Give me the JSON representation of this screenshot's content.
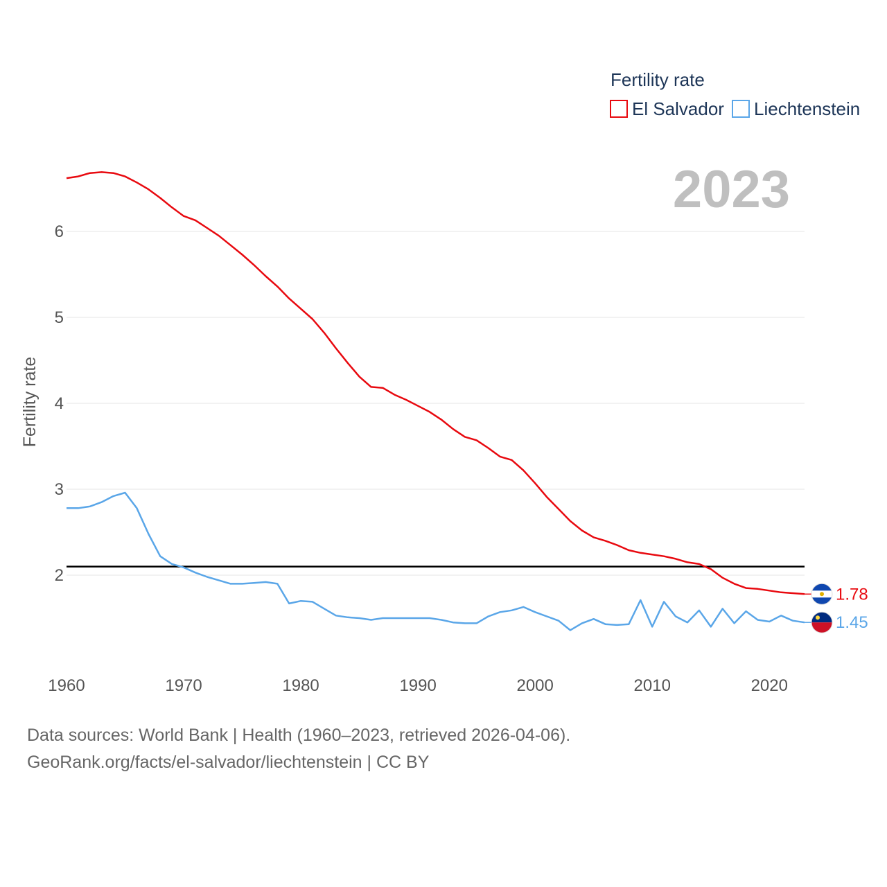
{
  "colors": {
    "el_salvador": "#e8090f",
    "liechtenstein": "#5aa6e8",
    "reference": "#000000",
    "grid": "#e6e6e6"
  },
  "chart_data": {
    "type": "line",
    "title": "Fertility rate",
    "year_label": "2023",
    "xlabel": "",
    "ylabel": "Fertility rate",
    "xlim": [
      1960,
      2023
    ],
    "ylim": [
      1.0,
      7.0
    ],
    "x_ticks": [
      "1960",
      "1970",
      "1980",
      "1990",
      "2000",
      "2010",
      "2020"
    ],
    "y_ticks": [
      "2",
      "3",
      "4",
      "5",
      "6"
    ],
    "reference_line": 2.1,
    "x": [
      1960,
      1961,
      1962,
      1963,
      1964,
      1965,
      1966,
      1967,
      1968,
      1969,
      1970,
      1971,
      1972,
      1973,
      1974,
      1975,
      1976,
      1977,
      1978,
      1979,
      1980,
      1981,
      1982,
      1983,
      1984,
      1985,
      1986,
      1987,
      1988,
      1989,
      1990,
      1991,
      1992,
      1993,
      1994,
      1995,
      1996,
      1997,
      1998,
      1999,
      2000,
      2001,
      2002,
      2003,
      2004,
      2005,
      2006,
      2007,
      2008,
      2009,
      2010,
      2011,
      2012,
      2013,
      2014,
      2015,
      2016,
      2017,
      2018,
      2019,
      2020,
      2021,
      2022,
      2023
    ],
    "series": [
      {
        "name": "El Salvador",
        "end_label": "1.78",
        "flag": "el-salvador-flag-icon",
        "values": [
          6.62,
          6.64,
          6.68,
          6.69,
          6.68,
          6.64,
          6.57,
          6.49,
          6.39,
          6.28,
          6.18,
          6.13,
          6.04,
          5.95,
          5.84,
          5.73,
          5.61,
          5.48,
          5.36,
          5.22,
          5.1,
          4.98,
          4.82,
          4.64,
          4.47,
          4.31,
          4.19,
          4.18,
          4.1,
          4.04,
          3.97,
          3.9,
          3.81,
          3.7,
          3.61,
          3.57,
          3.48,
          3.38,
          3.34,
          3.22,
          3.07,
          2.91,
          2.77,
          2.63,
          2.52,
          2.44,
          2.4,
          2.35,
          2.29,
          2.26,
          2.24,
          2.22,
          2.19,
          2.15,
          2.13,
          2.07,
          1.97,
          1.9,
          1.85,
          1.84,
          1.82,
          1.8,
          1.79,
          1.78
        ]
      },
      {
        "name": "Liechtenstein",
        "end_label": "1.45",
        "flag": "liechtenstein-flag-icon",
        "values": [
          2.78,
          2.78,
          2.8,
          2.85,
          2.92,
          2.96,
          2.78,
          2.48,
          2.22,
          2.13,
          2.09,
          2.03,
          1.98,
          1.94,
          1.9,
          1.9,
          1.91,
          1.92,
          1.9,
          1.67,
          1.7,
          1.69,
          1.61,
          1.53,
          1.51,
          1.5,
          1.48,
          1.5,
          1.5,
          1.5,
          1.5,
          1.5,
          1.48,
          1.45,
          1.44,
          1.44,
          1.52,
          1.57,
          1.59,
          1.63,
          1.57,
          1.52,
          1.47,
          1.36,
          1.44,
          1.49,
          1.43,
          1.42,
          1.43,
          1.71,
          1.4,
          1.69,
          1.52,
          1.45,
          1.59,
          1.4,
          1.61,
          1.44,
          1.58,
          1.48,
          1.46,
          1.53,
          1.47,
          1.45
        ]
      }
    ]
  },
  "source": {
    "line1": "Data sources: World Bank | Health (1960–2023, retrieved 2026-04-06).",
    "line2": "GeoRank.org/facts/el-salvador/liechtenstein | CC BY"
  }
}
